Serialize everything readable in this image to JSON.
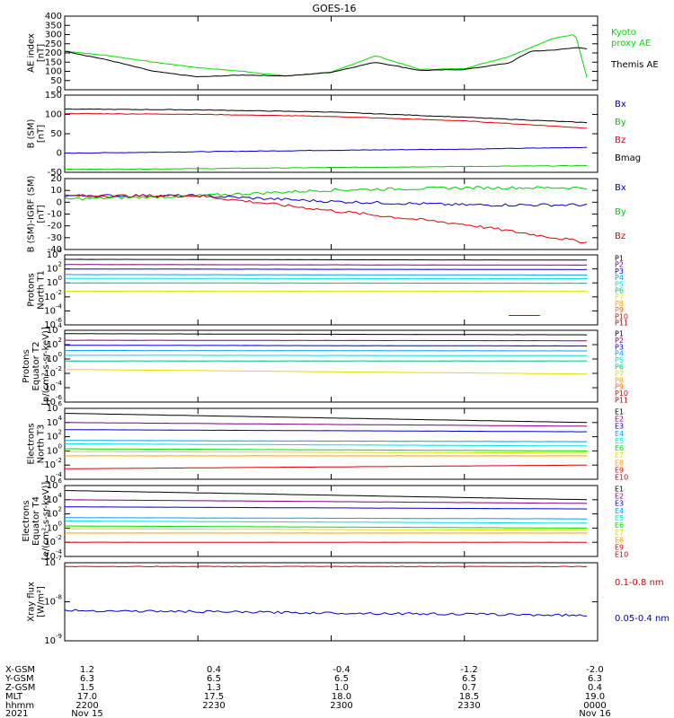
{
  "title": "GOES-16",
  "panels": [
    {
      "id": "ae",
      "ylabel": [
        "AE index",
        "[nT]"
      ],
      "ticks": [
        "400",
        "350",
        "300",
        "250",
        "200",
        "150",
        "100",
        "50",
        "0"
      ],
      "legend": [
        {
          "text": "Kyoto",
          "color": "#00e000"
        },
        {
          "text": "proxy AE",
          "color": "#00e000"
        },
        {
          "text": "",
          "color": "#000"
        },
        {
          "text": "Themis AE",
          "color": "#000000"
        }
      ]
    },
    {
      "id": "bsm",
      "ylabel": [
        "B (SM)",
        "[nT]"
      ],
      "ticks": [
        "150",
        "100",
        "50",
        "0",
        "-50"
      ],
      "legend": [
        {
          "text": "Bx",
          "color": "#0000d0"
        },
        {
          "text": "By",
          "color": "#00d000"
        },
        {
          "text": "Bz",
          "color": "#e00000"
        },
        {
          "text": "Bmag",
          "color": "#000000"
        }
      ]
    },
    {
      "id": "bigrf",
      "ylabel": [
        "B (SM)-IGRF (SM)",
        "[nT]"
      ],
      "ticks": [
        "20",
        "10",
        "0",
        "-10",
        "-20",
        "-30",
        "-40"
      ],
      "legend": [
        {
          "text": "Bx",
          "color": "#0000d0"
        },
        {
          "text": "By",
          "color": "#00d000"
        },
        {
          "text": "Bz",
          "color": "#e00000"
        }
      ]
    },
    {
      "id": "pnorth",
      "ylabel": [
        "Protons",
        "North T1"
      ],
      "ticks": [
        "10^4",
        "10^2",
        "10^0",
        "10^-2",
        "10^-4",
        "10^-6"
      ],
      "legend": [
        {
          "text": "P1",
          "color": "#000000"
        },
        {
          "text": "P2",
          "color": "#800080"
        },
        {
          "text": "P3",
          "color": "#0000d0"
        },
        {
          "text": "P4",
          "color": "#00a0ff"
        },
        {
          "text": "P5",
          "color": "#00e0e0"
        },
        {
          "text": "P6",
          "color": "#00c080"
        },
        {
          "text": "P7",
          "color": "#e0e000"
        },
        {
          "text": "P8",
          "color": "#ffa000"
        },
        {
          "text": "P9",
          "color": "#ff6000"
        },
        {
          "text": "P10",
          "color": "#e00000"
        },
        {
          "text": "P11",
          "color": "#c00000"
        }
      ]
    },
    {
      "id": "peq",
      "ylabel": [
        "Protons",
        "Equator T2",
        "[p/(cm²-s-sr-keV)]"
      ],
      "ticks": [
        "10^4",
        "10^2",
        "10^0",
        "10^-2",
        "10^-4",
        "10^-6"
      ],
      "legend": [
        {
          "text": "P1",
          "color": "#000000"
        },
        {
          "text": "P2",
          "color": "#800080"
        },
        {
          "text": "P3",
          "color": "#0000d0"
        },
        {
          "text": "P4",
          "color": "#00a0ff"
        },
        {
          "text": "P5",
          "color": "#00e0e0"
        },
        {
          "text": "P6",
          "color": "#00c080"
        },
        {
          "text": "P7",
          "color": "#e0e000"
        },
        {
          "text": "P8",
          "color": "#ffa000"
        },
        {
          "text": "P9",
          "color": "#ff6000"
        },
        {
          "text": "P10",
          "color": "#e00000"
        },
        {
          "text": "P11",
          "color": "#c00000"
        }
      ]
    },
    {
      "id": "enorth",
      "ylabel": [
        "Electrons",
        "North T3"
      ],
      "ticks": [
        "10^6",
        "10^4",
        "10^2",
        "10^0",
        "10^-2",
        "10^-4"
      ],
      "legend": [
        {
          "text": "E1",
          "color": "#000000"
        },
        {
          "text": "E2",
          "color": "#800080"
        },
        {
          "text": "E3",
          "color": "#0000d0"
        },
        {
          "text": "E4",
          "color": "#00a0ff"
        },
        {
          "text": "E5",
          "color": "#00e0e0"
        },
        {
          "text": "E6",
          "color": "#00e000"
        },
        {
          "text": "E7",
          "color": "#e0e000"
        },
        {
          "text": "E8",
          "color": "#ffa000"
        },
        {
          "text": "E9",
          "color": "#e00000"
        },
        {
          "text": "E10",
          "color": "#c00000"
        }
      ]
    },
    {
      "id": "eeq",
      "ylabel": [
        "Electrons",
        "Equator T4",
        "[e/(cm²-s-sr-keV)]"
      ],
      "ticks": [
        "10^6",
        "10^4",
        "10^2",
        "10^0",
        "10^-2",
        "10^-4"
      ],
      "legend": [
        {
          "text": "E1",
          "color": "#000000"
        },
        {
          "text": "E2",
          "color": "#800080"
        },
        {
          "text": "E3",
          "color": "#0000d0"
        },
        {
          "text": "E4",
          "color": "#00a0ff"
        },
        {
          "text": "E5",
          "color": "#00e0e0"
        },
        {
          "text": "E6",
          "color": "#00e000"
        },
        {
          "text": "E7",
          "color": "#e0e000"
        },
        {
          "text": "E8",
          "color": "#ffa000"
        },
        {
          "text": "E9",
          "color": "#e00000"
        },
        {
          "text": "E10",
          "color": "#c00000"
        }
      ]
    },
    {
      "id": "xray",
      "ylabel": [
        "Xray flux",
        "[W/m²]"
      ],
      "ticks": [
        "10^-7",
        "10^-8",
        "10^-9"
      ],
      "legend": [
        {
          "text": "0.1-0.8 nm",
          "color": "#e00000"
        },
        {
          "text": "0.05-0.4 nm",
          "color": "#0000d0"
        }
      ]
    }
  ],
  "ephemeris": {
    "rows": [
      "X-GSM",
      "Y-GSM",
      "Z-GSM",
      "MLT",
      "hhmm",
      "2021"
    ],
    "columns": [
      [
        "1.2",
        "6.3",
        "1.5",
        "17.0",
        "2200",
        "Nov 15"
      ],
      [
        "0.4",
        "6.5",
        "1.3",
        "17.5",
        "2230",
        ""
      ],
      [
        "-0.4",
        "6.5",
        "1.0",
        "18.0",
        "2300",
        ""
      ],
      [
        "-1.2",
        "6.5",
        "0.7",
        "18.5",
        "2330",
        ""
      ],
      [
        "-2.0",
        "6.3",
        "0.4",
        "19.0",
        "0000",
        "Nov 16"
      ]
    ]
  },
  "chart_data": {
    "type": "line",
    "title": "GOES-16",
    "x": [
      "2021-11-15 22:00",
      "2021-11-15 22:30",
      "2021-11-15 23:00",
      "2021-11-15 23:30",
      "2021-11-16 00:00"
    ],
    "subplots": [
      {
        "ylabel": "AE index [nT]",
        "ylim": [
          0,
          400
        ],
        "series": [
          {
            "name": "Kyoto proxy AE",
            "color": "#00e000",
            "x": [
              2200,
              2210,
              2220,
              2230,
              2240,
              2250,
              2300,
              2310,
              2320,
              2330,
              2340,
              2345,
              2350,
              2355,
              2358
            ],
            "values": [
              210,
              185,
              150,
              120,
              100,
              75,
              95,
              185,
              110,
              115,
              180,
              230,
              280,
              300,
              30
            ]
          },
          {
            "name": "Themis AE",
            "color": "#000000",
            "x": [
              2200,
              2210,
              2220,
              2230,
              2240,
              2250,
              2300,
              2310,
              2320,
              2330,
              2340,
              2345,
              2350,
              2355,
              2358
            ],
            "values": [
              210,
              160,
              100,
              70,
              80,
              75,
              95,
              150,
              105,
              110,
              145,
              210,
              215,
              230,
              220
            ]
          }
        ]
      },
      {
        "ylabel": "B (SM) [nT]",
        "ylim": [
          -60,
          150
        ],
        "series": [
          {
            "name": "Bx",
            "color": "#0000d0",
            "x": [
              2200,
              2230,
              2300,
              2330,
              2358
            ],
            "values": [
              -8,
              -4,
              0,
              3,
              8
            ]
          },
          {
            "name": "By",
            "color": "#00d000",
            "x": [
              2200,
              2230,
              2300,
              2330,
              2358
            ],
            "values": [
              -52,
              -50,
              -47,
              -44,
              -42
            ]
          },
          {
            "name": "Bz",
            "color": "#e00000",
            "x": [
              2200,
              2230,
              2300,
              2330,
              2358
            ],
            "values": [
              100,
              98,
              92,
              80,
              60
            ]
          },
          {
            "name": "Bmag",
            "color": "#000000",
            "x": [
              2200,
              2230,
              2300,
              2330,
              2358
            ],
            "values": [
              112,
              110,
              104,
              90,
              75
            ]
          }
        ]
      },
      {
        "ylabel": "B (SM)-IGRF (SM) [nT]",
        "ylim": [
          -42,
          20
        ],
        "series": [
          {
            "name": "Bx",
            "color": "#0000d0",
            "x": [
              2200,
              2230,
              2300,
              2330,
              2358
            ],
            "values": [
              5,
              5,
              0,
              -3,
              -3
            ]
          },
          {
            "name": "By",
            "color": "#00d000",
            "x": [
              2200,
              2230,
              2300,
              2330,
              2358
            ],
            "values": [
              2,
              5,
              10,
              12,
              12
            ]
          },
          {
            "name": "Bz",
            "color": "#e00000",
            "x": [
              2200,
              2230,
              2300,
              2330,
              2358
            ],
            "values": [
              5,
              5,
              -8,
              -20,
              -36
            ]
          }
        ]
      },
      {
        "ylabel": "Protons North T1",
        "yscale": "log",
        "ylim": [
          1e-07,
          10000.0
        ],
        "series": [
          {
            "name": "P1",
            "values": [
              2000,
              1500
            ]
          },
          {
            "name": "P2",
            "values": [
              300,
              250
            ]
          },
          {
            "name": "P3",
            "values": [
              60,
              50
            ]
          },
          {
            "name": "P4",
            "values": [
              8,
              7
            ]
          },
          {
            "name": "P5",
            "values": [
              2,
              1.8
            ]
          },
          {
            "name": "P6",
            "values": [
              0.4,
              0.35
            ]
          },
          {
            "name": "P7",
            "values": [
              0.02,
              0.02
            ]
          },
          {
            "name": "P10",
            "values": [
              null,
              3e-06
            ]
          }
        ]
      },
      {
        "ylabel": "Protons Equator T2 [p/(cm2-s-sr-keV)]",
        "yscale": "log",
        "ylim": [
          1e-07,
          10000.0
        ],
        "series": [
          {
            "name": "P1",
            "values": [
              3000,
              2000
            ]
          },
          {
            "name": "P2",
            "values": [
              300,
              250
            ]
          },
          {
            "name": "P3",
            "values": [
              50,
              40
            ]
          },
          {
            "name": "P4",
            "values": [
              8,
              7
            ]
          },
          {
            "name": "P5",
            "values": [
              1.5,
              1.3
            ]
          },
          {
            "name": "P6",
            "values": [
              0.2,
              0.2
            ]
          },
          {
            "name": "P7",
            "values": [
              0.01,
              0.002
            ]
          }
        ]
      },
      {
        "ylabel": "Electrons North T3",
        "yscale": "log",
        "ylim": [
          0.0001,
          1000000.0
        ],
        "series": [
          {
            "name": "E1",
            "values": [
              200000,
              10000
            ]
          },
          {
            "name": "E2",
            "values": [
              10000,
              3000
            ]
          },
          {
            "name": "E3",
            "values": [
              1000,
              500
            ]
          },
          {
            "name": "E4",
            "values": [
              30,
              20
            ]
          },
          {
            "name": "E5",
            "values": [
              10,
              5
            ]
          },
          {
            "name": "E6",
            "values": [
              2,
              1
            ]
          },
          {
            "name": "E7",
            "values": [
              0.8,
              0.5
            ]
          },
          {
            "name": "E8",
            "values": [
              0.2,
              0.2
            ]
          },
          {
            "name": "E9",
            "values": [
              0.003,
              0.01
            ]
          }
        ]
      },
      {
        "ylabel": "Electrons Equator T4 [e/(cm2-s-sr-keV)]",
        "yscale": "log",
        "ylim": [
          0.0001,
          1000000.0
        ],
        "series": [
          {
            "name": "E1",
            "values": [
              200000,
              10000
            ]
          },
          {
            "name": "E2",
            "values": [
              10000,
              3000
            ]
          },
          {
            "name": "E3",
            "values": [
              1000,
              500
            ]
          },
          {
            "name": "E4",
            "values": [
              30,
              20
            ]
          },
          {
            "name": "E5",
            "values": [
              10,
              5
            ]
          },
          {
            "name": "E6",
            "values": [
              2,
              1
            ]
          },
          {
            "name": "E7",
            "values": [
              0.8,
              0.5
            ]
          },
          {
            "name": "E8",
            "values": [
              0.2,
              0.2
            ]
          },
          {
            "name": "E9",
            "values": [
              0.01,
              0.01
            ]
          }
        ]
      },
      {
        "ylabel": "Xray flux [W/m2]",
        "yscale": "log",
        "ylim": [
          1e-09,
          1e-07
        ],
        "series": [
          {
            "name": "0.1-0.8 nm",
            "color": "#e00000",
            "values": [
              8e-08,
              8e-08
            ]
          },
          {
            "name": "0.05-0.4 nm",
            "color": "#0000d0",
            "values": [
              6e-09,
              4.5e-09
            ]
          }
        ]
      }
    ]
  }
}
